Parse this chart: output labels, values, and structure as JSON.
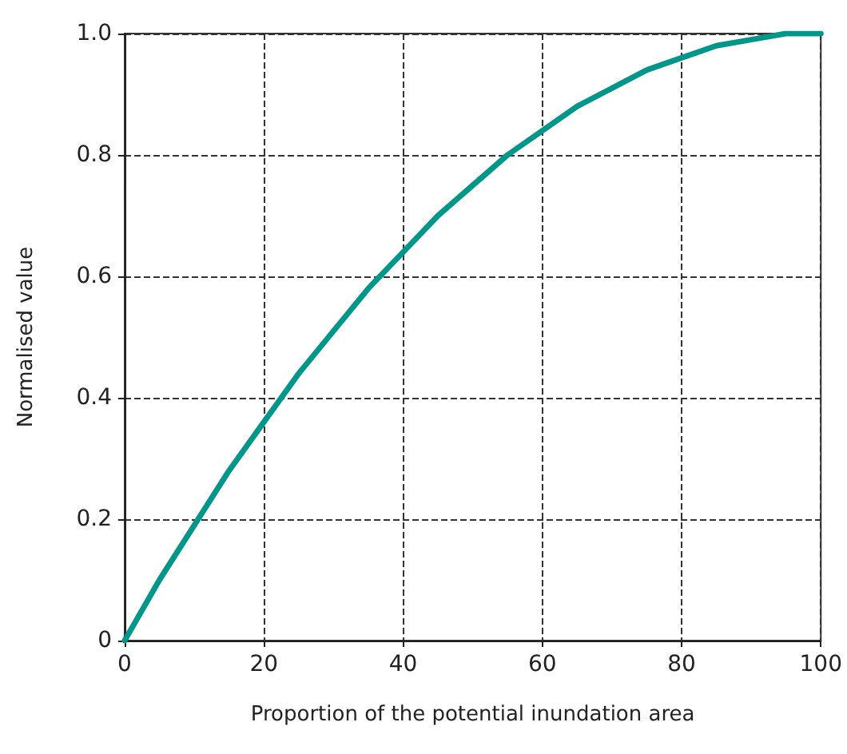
{
  "chart_data": {
    "type": "line",
    "xlabel": "Proportion of the potential inundation area",
    "ylabel": "Normalised value",
    "x": [
      0,
      5,
      10,
      15,
      20,
      25,
      30,
      35,
      40,
      45,
      50,
      55,
      60,
      65,
      70,
      75,
      80,
      85,
      90,
      95,
      100
    ],
    "series": [
      {
        "color": "#00968a",
        "values": [
          0,
          0.1,
          0.19,
          0.28,
          0.36,
          0.44,
          0.51,
          0.58,
          0.64,
          0.7,
          0.75,
          0.8,
          0.84,
          0.88,
          0.91,
          0.94,
          0.96,
          0.98,
          0.99,
          1.0,
          1.0
        ]
      }
    ],
    "xlim": [
      0,
      100
    ],
    "xticks": [
      0,
      20,
      40,
      60,
      80,
      100
    ],
    "ylim": [
      0,
      1
    ],
    "yticks": [
      0,
      0.2,
      0.4,
      0.6,
      0.8,
      {
        "value": 1,
        "label": "1.0"
      }
    ],
    "grid": true,
    "marker": "none",
    "line_style": "solid"
  }
}
